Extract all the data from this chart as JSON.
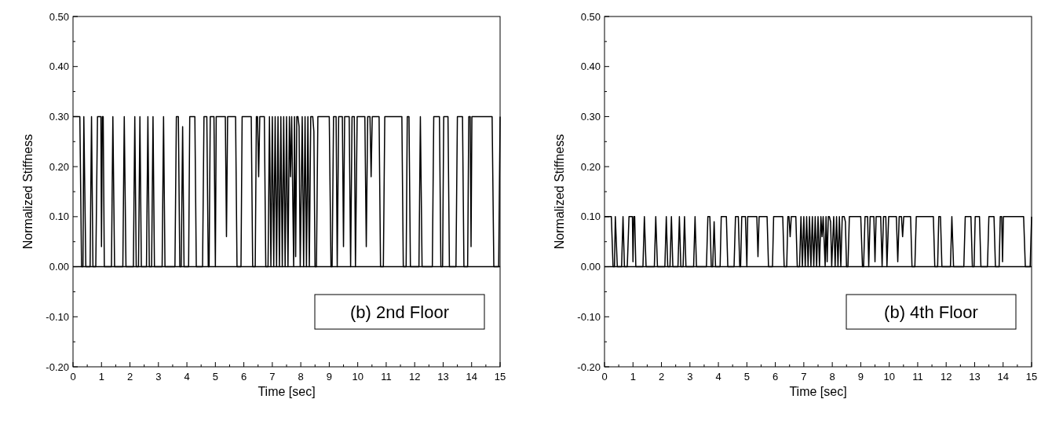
{
  "chart_data": [
    {
      "type": "line",
      "xlabel": "Time [sec]",
      "ylabel": "Normalized Stiffness",
      "annotations": [
        "(b) 2nd Floor"
      ],
      "xlim": [
        0,
        15
      ],
      "ylim": [
        -0.2,
        0.5
      ],
      "xticks": [
        0,
        {
          "value": 0.5,
          "label": null
        },
        1,
        {
          "value": 1.5,
          "label": null
        },
        2,
        {
          "value": 2.5,
          "label": null
        },
        3,
        {
          "value": 3.5,
          "label": null
        },
        4,
        {
          "value": 4.5,
          "label": null
        },
        5,
        {
          "value": 5.5,
          "label": null
        },
        6,
        {
          "value": 6.5,
          "label": null
        },
        7,
        {
          "value": 7.5,
          "label": null
        },
        8,
        {
          "value": 8.5,
          "label": null
        },
        9,
        {
          "value": 9.5,
          "label": null
        },
        10,
        {
          "value": 10.5,
          "label": null
        },
        11,
        {
          "value": 11.5,
          "label": null
        },
        12,
        {
          "value": 12.5,
          "label": null
        },
        13,
        {
          "value": 13.5,
          "label": null
        },
        14,
        {
          "value": 14.5,
          "label": null
        },
        15
      ],
      "yticks": [
        {
          "value": -0.2,
          "label": "-0.20"
        },
        {
          "value": -0.15,
          "label": null
        },
        {
          "value": -0.1,
          "label": "-0.10"
        },
        {
          "value": -0.05,
          "label": null
        },
        {
          "value": 0,
          "label": "0.00"
        },
        {
          "value": 0.05,
          "label": null
        },
        {
          "value": 0.1,
          "label": "0.10"
        },
        {
          "value": 0.15,
          "label": null
        },
        {
          "value": 0.2,
          "label": "0.20"
        },
        {
          "value": 0.25,
          "label": null
        },
        {
          "value": 0.3,
          "label": "0.30"
        },
        {
          "value": 0.35,
          "label": null
        },
        {
          "value": 0.4,
          "label": "0.40"
        },
        {
          "value": 0.45,
          "label": null
        },
        {
          "value": 0.5,
          "label": "0.50"
        }
      ],
      "ref_lines": [
        {
          "axis": "y",
          "value": 0,
          "color": "#000000"
        }
      ],
      "series": [
        {
          "color": "#000000",
          "x": [
            0,
            0.24,
            0.3,
            0.35,
            0.38,
            0.45,
            0.6,
            0.65,
            0.7,
            0.8,
            0.86,
            0.98,
            1.0,
            1.03,
            1.06,
            1.1,
            1.35,
            1.4,
            1.46,
            1.75,
            1.8,
            1.86,
            2.12,
            2.17,
            2.22,
            2.3,
            2.35,
            2.4,
            2.58,
            2.63,
            2.68,
            2.76,
            2.81,
            2.86,
            3.13,
            3.18,
            3.23,
            3.58,
            3.63,
            3.7,
            3.75,
            3.8,
            3.85,
            3.9,
            4.06,
            4.1,
            4.28,
            4.33,
            4.55,
            4.6,
            4.7,
            4.75,
            4.78,
            4.82,
            4.95,
            5.0,
            5.03,
            5.35,
            5.39,
            5.43,
            5.71,
            5.76,
            5.9,
            5.94,
            6.26,
            6.31,
            6.4,
            6.44,
            6.48,
            6.52,
            6.56,
            6.72,
            6.77,
            6.85,
            6.9,
            6.95,
            7.0,
            7.05,
            7.1,
            7.15,
            7.2,
            7.25,
            7.3,
            7.35,
            7.4,
            7.45,
            7.5,
            7.55,
            7.6,
            7.64,
            7.68,
            7.75,
            7.78,
            7.82,
            7.86,
            7.9,
            7.94,
            7.98,
            8.05,
            8.1,
            8.15,
            8.2,
            8.25,
            8.3,
            8.35,
            8.42,
            8.46,
            8.5,
            8.55,
            8.6,
            9.0,
            9.06,
            9.1,
            9.15,
            9.24,
            9.28,
            9.33,
            9.46,
            9.5,
            9.54,
            9.7,
            9.75,
            9.8,
            9.88,
            9.92,
            9.98,
            10.25,
            10.3,
            10.35,
            10.43,
            10.47,
            10.51,
            10.75,
            10.8,
            10.9,
            10.95,
            11.55,
            11.6,
            11.7,
            11.74,
            11.8,
            11.85,
            12.15,
            12.2,
            12.26,
            12.62,
            12.67,
            12.87,
            12.92,
            12.98,
            13.02,
            13.17,
            13.22,
            13.45,
            13.5,
            13.68,
            13.73,
            13.86,
            13.9,
            13.95,
            13.98,
            14.01,
            14.72,
            14.78,
            14.95,
            15
          ],
          "values": [
            0.3,
            0.3,
            0,
            0,
            0.3,
            0,
            0,
            0.3,
            0,
            0,
            0.3,
            0.3,
            0.04,
            0.3,
            0.3,
            0,
            0,
            0.3,
            0,
            0,
            0.3,
            0,
            0,
            0.3,
            0,
            0,
            0.3,
            0,
            0,
            0.3,
            0,
            0,
            0.3,
            0,
            0,
            0.3,
            0,
            0,
            0.3,
            0.3,
            0,
            0,
            0.28,
            0,
            0,
            0.3,
            0.3,
            0,
            0,
            0.3,
            0.3,
            0,
            0,
            0.3,
            0.3,
            0,
            0.3,
            0.3,
            0.06,
            0.3,
            0.3,
            0,
            0,
            0.3,
            0.3,
            0,
            0,
            0.3,
            0.3,
            0.18,
            0.3,
            0.3,
            0,
            0,
            0.3,
            0,
            0.3,
            0,
            0.3,
            0,
            0.3,
            0,
            0.3,
            0,
            0.3,
            0,
            0.3,
            0,
            0.3,
            0.18,
            0.3,
            0,
            0.3,
            0.02,
            0.3,
            0.3,
            0.28,
            0,
            0.3,
            0,
            0.3,
            0,
            0.3,
            0,
            0.3,
            0.3,
            0.27,
            0,
            0,
            0.3,
            0.3,
            0,
            0,
            0.3,
            0.3,
            0,
            0.3,
            0.3,
            0.04,
            0.3,
            0.3,
            0,
            0.3,
            0.3,
            0,
            0.3,
            0.3,
            0.04,
            0.3,
            0.3,
            0.18,
            0.3,
            0.3,
            0,
            0,
            0.3,
            0.3,
            0,
            0,
            0.3,
            0.3,
            0,
            0,
            0.3,
            0,
            0,
            0.3,
            0.3,
            0,
            0,
            0.3,
            0.3,
            0,
            0,
            0.3,
            0.3,
            0,
            0,
            0.3,
            0.3,
            0.04,
            0.3,
            0.3,
            0,
            0,
            0.3
          ]
        }
      ]
    },
    {
      "type": "line",
      "xlabel": "Time [sec]",
      "ylabel": "Normalized Stiffness",
      "annotations": [
        "(b) 4th Floor"
      ],
      "xlim": [
        0,
        15
      ],
      "ylim": [
        -0.2,
        0.5
      ],
      "xticks": [
        0,
        {
          "value": 0.5,
          "label": null
        },
        1,
        {
          "value": 1.5,
          "label": null
        },
        2,
        {
          "value": 2.5,
          "label": null
        },
        3,
        {
          "value": 3.5,
          "label": null
        },
        4,
        {
          "value": 4.5,
          "label": null
        },
        5,
        {
          "value": 5.5,
          "label": null
        },
        6,
        {
          "value": 6.5,
          "label": null
        },
        7,
        {
          "value": 7.5,
          "label": null
        },
        8,
        {
          "value": 8.5,
          "label": null
        },
        9,
        {
          "value": 9.5,
          "label": null
        },
        10,
        {
          "value": 10.5,
          "label": null
        },
        11,
        {
          "value": 11.5,
          "label": null
        },
        12,
        {
          "value": 12.5,
          "label": null
        },
        13,
        {
          "value": 13.5,
          "label": null
        },
        14,
        {
          "value": 14.5,
          "label": null
        },
        15
      ],
      "yticks": [
        {
          "value": -0.2,
          "label": "-0.20"
        },
        {
          "value": -0.15,
          "label": null
        },
        {
          "value": -0.1,
          "label": "-0.10"
        },
        {
          "value": -0.05,
          "label": null
        },
        {
          "value": 0,
          "label": "0.00"
        },
        {
          "value": 0.05,
          "label": null
        },
        {
          "value": 0.1,
          "label": "0.10"
        },
        {
          "value": 0.15,
          "label": null
        },
        {
          "value": 0.2,
          "label": "0.20"
        },
        {
          "value": 0.25,
          "label": null
        },
        {
          "value": 0.3,
          "label": "0.30"
        },
        {
          "value": 0.35,
          "label": null
        },
        {
          "value": 0.4,
          "label": "0.40"
        },
        {
          "value": 0.45,
          "label": null
        },
        {
          "value": 0.5,
          "label": "0.50"
        }
      ],
      "ref_lines": [
        {
          "axis": "y",
          "value": 0,
          "color": "#000000"
        }
      ],
      "series": [
        {
          "color": "#000000",
          "x": [
            0,
            0.24,
            0.3,
            0.35,
            0.38,
            0.45,
            0.6,
            0.65,
            0.7,
            0.8,
            0.86,
            0.98,
            1.0,
            1.03,
            1.06,
            1.1,
            1.35,
            1.4,
            1.46,
            1.75,
            1.8,
            1.86,
            2.12,
            2.17,
            2.22,
            2.3,
            2.35,
            2.4,
            2.58,
            2.63,
            2.68,
            2.76,
            2.81,
            2.86,
            3.13,
            3.18,
            3.23,
            3.58,
            3.63,
            3.7,
            3.75,
            3.8,
            3.85,
            3.9,
            4.06,
            4.1,
            4.28,
            4.33,
            4.55,
            4.6,
            4.7,
            4.75,
            4.78,
            4.82,
            4.95,
            5.0,
            5.03,
            5.35,
            5.39,
            5.43,
            5.71,
            5.76,
            5.9,
            5.94,
            6.26,
            6.31,
            6.4,
            6.44,
            6.48,
            6.52,
            6.56,
            6.72,
            6.77,
            6.85,
            6.9,
            6.95,
            7.0,
            7.05,
            7.1,
            7.15,
            7.2,
            7.25,
            7.3,
            7.35,
            7.4,
            7.45,
            7.5,
            7.55,
            7.6,
            7.64,
            7.68,
            7.75,
            7.78,
            7.82,
            7.86,
            7.9,
            7.94,
            7.98,
            8.05,
            8.1,
            8.15,
            8.2,
            8.25,
            8.3,
            8.35,
            8.42,
            8.46,
            8.5,
            8.55,
            8.6,
            9.0,
            9.06,
            9.1,
            9.15,
            9.24,
            9.28,
            9.33,
            9.46,
            9.5,
            9.54,
            9.7,
            9.75,
            9.8,
            9.88,
            9.92,
            9.98,
            10.25,
            10.3,
            10.35,
            10.43,
            10.47,
            10.51,
            10.75,
            10.8,
            10.9,
            10.95,
            11.55,
            11.6,
            11.7,
            11.74,
            11.8,
            11.85,
            12.15,
            12.2,
            12.26,
            12.62,
            12.67,
            12.87,
            12.92,
            12.98,
            13.02,
            13.17,
            13.22,
            13.45,
            13.5,
            13.68,
            13.73,
            13.86,
            13.9,
            13.95,
            13.98,
            14.01,
            14.72,
            14.78,
            14.95,
            15
          ],
          "values": [
            0.1,
            0.1,
            0,
            0,
            0.1,
            0,
            0,
            0.1,
            0,
            0,
            0.1,
            0.1,
            0.01,
            0.1,
            0.1,
            0,
            0,
            0.1,
            0,
            0,
            0.1,
            0,
            0,
            0.1,
            0,
            0,
            0.1,
            0,
            0,
            0.1,
            0,
            0,
            0.1,
            0,
            0,
            0.1,
            0,
            0,
            0.1,
            0.1,
            0,
            0,
            0.09,
            0,
            0,
            0.1,
            0.1,
            0,
            0,
            0.1,
            0.1,
            0,
            0,
            0.1,
            0.1,
            0,
            0.1,
            0.1,
            0.02,
            0.1,
            0.1,
            0,
            0,
            0.1,
            0.1,
            0,
            0,
            0.1,
            0.1,
            0.06,
            0.1,
            0.1,
            0,
            0,
            0.1,
            0,
            0.1,
            0,
            0.1,
            0,
            0.1,
            0,
            0.1,
            0,
            0.1,
            0,
            0.1,
            0,
            0.1,
            0.06,
            0.1,
            0,
            0.1,
            0.01,
            0.1,
            0.1,
            0.09,
            0,
            0.1,
            0,
            0.1,
            0,
            0.1,
            0,
            0.1,
            0.1,
            0.09,
            0,
            0,
            0.1,
            0.1,
            0,
            0,
            0.1,
            0.1,
            0,
            0.1,
            0.1,
            0.01,
            0.1,
            0.1,
            0,
            0.1,
            0.1,
            0,
            0.1,
            0.1,
            0.01,
            0.1,
            0.1,
            0.06,
            0.1,
            0.1,
            0,
            0,
            0.1,
            0.1,
            0,
            0,
            0.1,
            0.1,
            0,
            0,
            0.1,
            0,
            0,
            0.1,
            0.1,
            0,
            0,
            0.1,
            0.1,
            0,
            0,
            0.1,
            0.1,
            0,
            0,
            0.1,
            0.1,
            0.01,
            0.1,
            0.1,
            0,
            0,
            0.1
          ]
        }
      ]
    }
  ]
}
